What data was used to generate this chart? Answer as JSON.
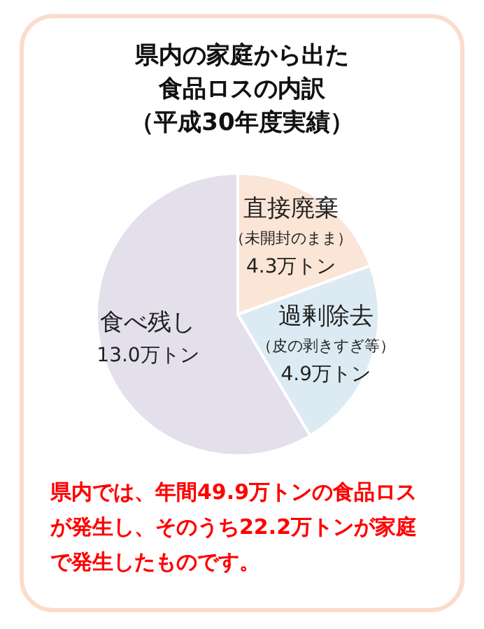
{
  "chart_data": {
    "type": "pie",
    "title": "県内の家庭から出た食品ロスの内訳",
    "subtitle": "（平成30年度実績）",
    "categories": [
      "直接廃棄",
      "過剰除去",
      "食べ残し"
    ],
    "values": [
      4.3,
      4.9,
      13.0
    ],
    "value_labels": [
      "4.3万トン",
      "4.9万トン",
      "13.0万トン"
    ],
    "colors": [
      "#fbe5d6",
      "#dcebf3",
      "#e3dfeb"
    ],
    "annotations": [
      {
        "text": "（未開封のまま）",
        "x": "直接廃棄"
      },
      {
        "text": "（皮の剥きすぎ等）",
        "x": "過剰除去"
      },
      "県内では、年間49.9万トンの食品ロスが発生し、そのうち22.2万トンが家庭で発生したものです。"
    ],
    "legend": false
  }
}
